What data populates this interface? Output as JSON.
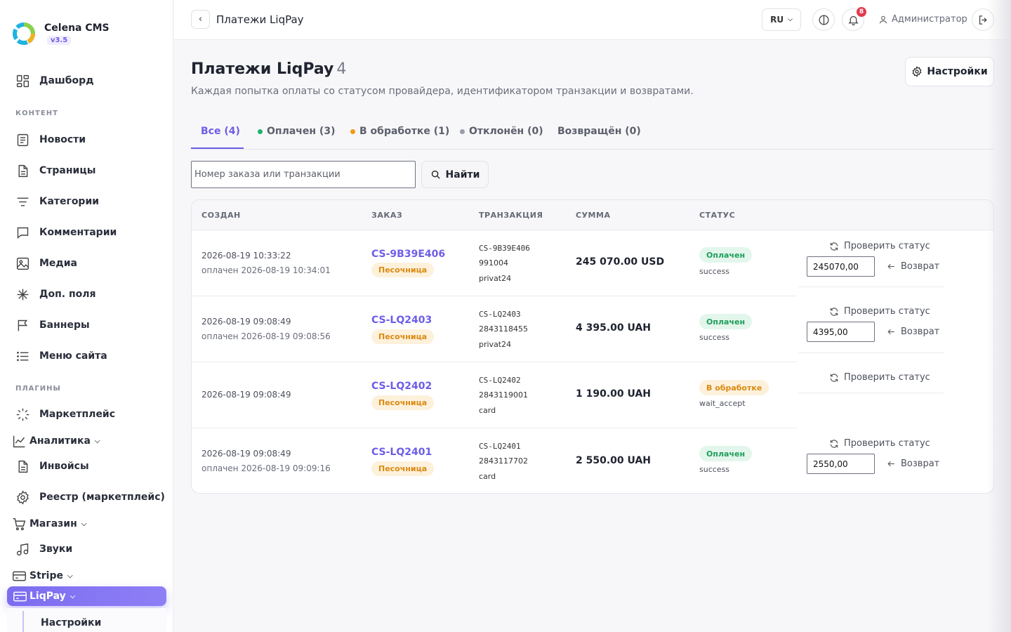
{
  "brand": {
    "name": "Celena CMS",
    "version": "v3.5"
  },
  "sidebar": {
    "items": [
      {
        "label": "Дашборд"
      },
      {
        "label": "Новости"
      },
      {
        "label": "Страницы"
      },
      {
        "label": "Категории"
      },
      {
        "label": "Комментарии"
      },
      {
        "label": "Медиа"
      },
      {
        "label": "Доп. поля"
      },
      {
        "label": "Баннеры"
      },
      {
        "label": "Меню сайта"
      },
      {
        "label": "Маркетплейс"
      },
      {
        "label": "Аналитика"
      },
      {
        "label": "Инвойсы"
      },
      {
        "label": "Реестр (маркетплейс)"
      },
      {
        "label": "Магазин"
      },
      {
        "label": "Звуки"
      },
      {
        "label": "Stripe"
      },
      {
        "label": "LiqPay"
      }
    ],
    "sections": {
      "content": "КОНТЕНТ",
      "plugins": "ПЛАГИНЫ"
    },
    "sub_item": "Настройки",
    "chevron": "⌵"
  },
  "topbar": {
    "back_glyph": "‹",
    "title": "Платежи LiqPay",
    "lang": "RU",
    "lang_chevron": "⌵",
    "notifications_count": "8",
    "user": "Администратор"
  },
  "page": {
    "title": "Платежи LiqPay",
    "count": "4",
    "description": "Каждая попытка оплаты со статусом провайдера, идентификатором транзакции и возвратами.",
    "settings_label": "Настройки"
  },
  "tabs": [
    {
      "label": "Все (4)",
      "color": ""
    },
    {
      "label": "Оплачен (3)",
      "color": "#1fb36b"
    },
    {
      "label": "В обработке (1)",
      "color": "#f29a12"
    },
    {
      "label": "Отклонён (0)",
      "color": "#9a9ea9"
    },
    {
      "label": "Возвращён (0)",
      "color": ""
    }
  ],
  "search": {
    "placeholder": "Номер заказа или транзакции",
    "button": "Найти"
  },
  "table": {
    "headers": {
      "created": "СОЗДАН",
      "order": "ЗАКАЗ",
      "transaction": "ТРАНЗАКЦИЯ",
      "sum": "СУММА",
      "status": "СТАТУС"
    },
    "check_label": "Проверить статус",
    "refund_label": "Возврат",
    "sandbox_label": "Песочница",
    "rows": [
      {
        "created": "2026-08-19 10:33:22",
        "paid": "оплачен 2026-08-19 10:34:01",
        "order": "CS-9B39E406",
        "txn_order": "CS-9B39E406",
        "txn_id": "991004",
        "txn_method": "privat24",
        "sum": "245 070.00 USD",
        "status": "Оплачен",
        "status_code": "success",
        "refund_value": "245070,00"
      },
      {
        "created": "2026-08-19 09:08:49",
        "paid": "оплачен 2026-08-19 09:08:56",
        "order": "CS-LQ2403",
        "txn_order": "CS-LQ2403",
        "txn_id": "2843118455",
        "txn_method": "privat24",
        "sum": "4 395.00 UAH",
        "status": "Оплачен",
        "status_code": "success",
        "refund_value": "4395,00"
      },
      {
        "created": "2026-08-19 09:08:49",
        "paid": "",
        "order": "CS-LQ2402",
        "txn_order": "CS-LQ2402",
        "txn_id": "2843119001",
        "txn_method": "card",
        "sum": "1 190.00 UAH",
        "status": "В обработке",
        "status_code": "wait_accept",
        "refund_value": ""
      },
      {
        "created": "2026-08-19 09:08:49",
        "paid": "оплачен 2026-08-19 09:09:16",
        "order": "CS-LQ2401",
        "txn_order": "CS-LQ2401",
        "txn_id": "2843117702",
        "txn_method": "card",
        "sum": "2 550.00 UAH",
        "status": "Оплачен",
        "status_code": "success",
        "refund_value": "2550,00"
      }
    ]
  },
  "colors": {
    "accent": "#6d5de8",
    "paid": "#1e9e5a",
    "pending": "#d98a12"
  }
}
